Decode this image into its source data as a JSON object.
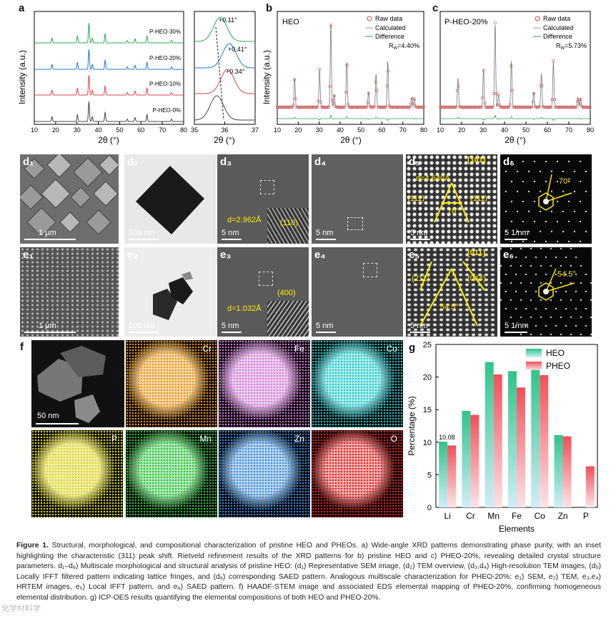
{
  "panels": {
    "a": "a",
    "b": "b",
    "c": "c",
    "d1": "d₁",
    "d2": "d₂",
    "d3": "d₃",
    "d4": "d₄",
    "d5": "d₅",
    "d6": "d₆",
    "e1": "e₁",
    "e2": "e₂",
    "e3": "e₃",
    "e4": "e₄",
    "e5": "e₅",
    "e6": "e₆",
    "f": "f",
    "g": "g"
  },
  "chart_data": [
    {
      "type": "line",
      "id": "a-main",
      "xlabel": "2θ (°)",
      "ylabel": "Intensity (a.u.)",
      "xlim": [
        10,
        80
      ],
      "xticks": [
        "10",
        "20",
        "30",
        "40",
        "50",
        "60",
        "70",
        "80"
      ],
      "series": [
        {
          "name": "P-HEO-30%",
          "color": "#2aa956"
        },
        {
          "name": "P-HEO-20%",
          "color": "#1f77d4"
        },
        {
          "name": "P-HEO-10%",
          "color": "#e0404a"
        },
        {
          "name": "P-HEO-0%",
          "color": "#444444"
        }
      ],
      "peaks_2theta": [
        18.3,
        30.2,
        35.6,
        37.2,
        43.2,
        53.6,
        57.2,
        62.8,
        74.3
      ]
    },
    {
      "type": "line",
      "id": "a-inset",
      "xlabel": "2θ (°)",
      "xlim": [
        35,
        37
      ],
      "xticks": [
        "35",
        "36",
        "37"
      ],
      "annotations": [
        "+0.11°",
        "+0.41°",
        "+0.34°"
      ]
    },
    {
      "type": "scatter",
      "id": "b",
      "title": "HEO",
      "xlabel": "2θ (°)",
      "ylabel": "Intensity (a.u.)",
      "xlim": [
        10,
        80
      ],
      "xticks": [
        "10",
        "20",
        "30",
        "40",
        "50",
        "60",
        "70",
        "80"
      ],
      "legend": [
        "Raw data",
        "Calculated",
        "Difference"
      ],
      "rw": "R",
      "rw_sub": "W",
      "rw_value": "=4.40%"
    },
    {
      "type": "scatter",
      "id": "c",
      "title": "P-HEO-20%",
      "xlabel": "2θ (°)",
      "xlim": [
        10,
        80
      ],
      "xticks": [
        "10",
        "20",
        "30",
        "40",
        "50",
        "60",
        "70",
        "80"
      ],
      "legend": [
        "Raw data",
        "Calculated",
        "Difference"
      ],
      "rw": "R",
      "rw_sub": "W",
      "rw_value": "=5.73%"
    },
    {
      "type": "bar",
      "id": "g",
      "xlabel": "Elements",
      "ylabel": "Percentage (%)",
      "ylim": [
        0,
        25
      ],
      "yticks": [
        "0",
        "5",
        "10",
        "15",
        "20",
        "25"
      ],
      "categories": [
        "Li",
        "Cr",
        "Mn",
        "Fe",
        "Co",
        "Zn",
        "P"
      ],
      "series": [
        {
          "name": "HEO",
          "color": "#2fc48a",
          "values": [
            10.08,
            14.8,
            22.3,
            20.9,
            21.1,
            11.1,
            0
          ]
        },
        {
          "name": "PHEO",
          "color": "#f0505a",
          "values": [
            9.5,
            14.2,
            20.4,
            18.4,
            20.3,
            10.9,
            6.3
          ]
        }
      ],
      "data_label": "10.08"
    }
  ],
  "micrographs": {
    "d1_scale": "1 μm",
    "d2_scale": "100 nm",
    "d3_scale": "5 nm",
    "d4_scale": "5 nm",
    "d5_scale": "5 nm",
    "d6_scale": "5 1/nm",
    "e1_scale": "1 μm",
    "e2_scale": "100 nm",
    "e3_scale": "5 nm",
    "e4_scale": "5 nm",
    "e5_scale": "5 nm",
    "e6_scale": "5 1/nm",
    "d3_plane": "(110)",
    "d3_d": "d=2.962Å",
    "d5_zone": "[101]",
    "d5_d": "d=4.640Å",
    "d5_p1": "(111)",
    "d5_p2": "(111)",
    "d5_angle": "70°",
    "d6_angle": "70°",
    "e3_plane": "(400)",
    "e3_d": "d=1.032Å",
    "e5_zone": "[011]",
    "e5_p1": "(211)",
    "e5_p2": "(044)",
    "e5_angle": "54.5°",
    "e6_angle": "54.5°",
    "f_scale": "50 nm"
  },
  "maps": [
    {
      "label": "Cr",
      "color": "#e8920f"
    },
    {
      "label": "Fe",
      "color": "#d07ad8"
    },
    {
      "label": "Co",
      "color": "#1fc8c8"
    },
    {
      "label": "P",
      "color": "#d8d21a"
    },
    {
      "label": "Mn",
      "color": "#2bc23a"
    },
    {
      "label": "Zn",
      "color": "#3a8ad8"
    },
    {
      "label": "O",
      "color": "#e02020"
    }
  ],
  "caption": {
    "fig": "Figure 1.",
    "text": "Structural, morphological, and compositional characterization of pristine HEO and PHEOs. a) Wide-angle XRD patterns demonstrating phase purity, with an inset highlighting the characteristic (311) peak shift. Rietveld refinement results of the XRD patterns for b) pristine HEO and c) PHEO-20%, revealing detailed crystal structure parameters. d₁–d₆) Multiscale morphological and structural analysis of pristine HEO: (d₁) Representative SEM image, (d₂) TEM overview, (d₃,d₄) High-resolution TEM images, (d₅) Locally IFFT filtered pattern indicating lattice fringes, and (d₆) corresponding SAED pattern. Analogous multiscale characterization for PHEO-20%: e₁) SEM, e₂) TEM, e₃,e₄) HRTEM images, e₅) Local IFFT pattern, and e₆) SAED pattern. f) HAADF-STEM image and associated EDS elemental mapping of PHEO-20%, confirming homogeneous elemental distribution. g) ICP-OES results quantifying the elemental compositions of both HEO and PHEO-20%."
  },
  "watermark": "化学材料学"
}
